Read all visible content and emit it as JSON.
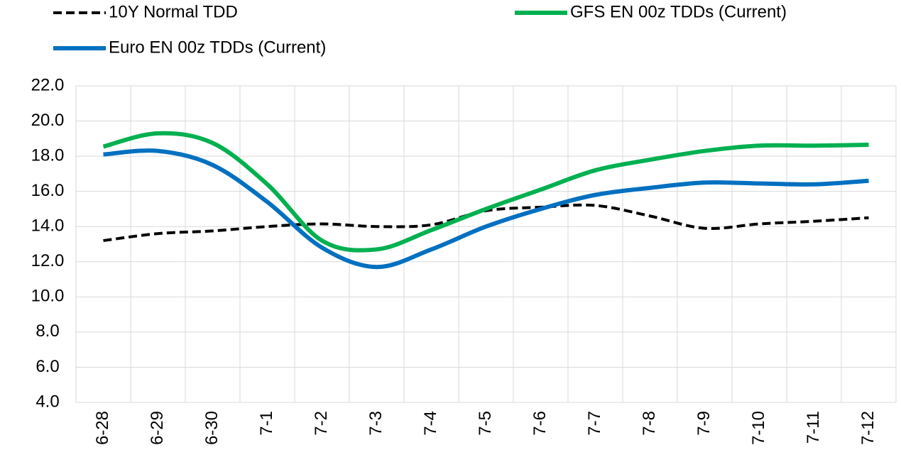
{
  "chart_data": {
    "type": "line",
    "categories": [
      "6-28",
      "6-29",
      "6-30",
      "7-1",
      "7-2",
      "7-3",
      "7-4",
      "7-5",
      "7-6",
      "7-7",
      "7-8",
      "7-9",
      "7-10",
      "7-11",
      "7-12"
    ],
    "series": [
      {
        "name": "10Y Normal TDD",
        "color": "#000000",
        "dash": true,
        "values": [
          13.2,
          13.6,
          13.75,
          14.0,
          14.15,
          14.0,
          14.1,
          14.9,
          15.1,
          15.2,
          14.6,
          13.9,
          14.15,
          14.3,
          14.5
        ]
      },
      {
        "name": "GFS EN 00z TDDs (Current)",
        "color": "#00b050",
        "dash": false,
        "values": [
          18.55,
          19.3,
          18.75,
          16.4,
          13.2,
          12.7,
          13.8,
          15.0,
          16.1,
          17.2,
          17.8,
          18.3,
          18.6,
          18.6,
          18.65
        ]
      },
      {
        "name": "Euro EN 00z TDDs (Current)",
        "color": "#0070c0",
        "dash": false,
        "values": [
          18.1,
          18.3,
          17.5,
          15.4,
          12.8,
          11.7,
          12.7,
          14.0,
          15.0,
          15.8,
          16.2,
          16.5,
          16.45,
          16.4,
          16.6
        ]
      }
    ],
    "ylim": [
      4,
      22
    ],
    "yticks": [
      {
        "value": 4,
        "label": "4.0"
      },
      {
        "value": 6,
        "label": "6.0"
      },
      {
        "value": 8,
        "label": "8.0"
      },
      {
        "value": 10,
        "label": "10.0"
      },
      {
        "value": 12,
        "label": "12.0"
      },
      {
        "value": 14,
        "label": "14.0"
      },
      {
        "value": 16,
        "label": "16.0"
      },
      {
        "value": 18,
        "label": "18.0"
      },
      {
        "value": 20,
        "label": "20.0"
      },
      {
        "value": 22,
        "label": "22.0"
      }
    ],
    "grid": true
  }
}
